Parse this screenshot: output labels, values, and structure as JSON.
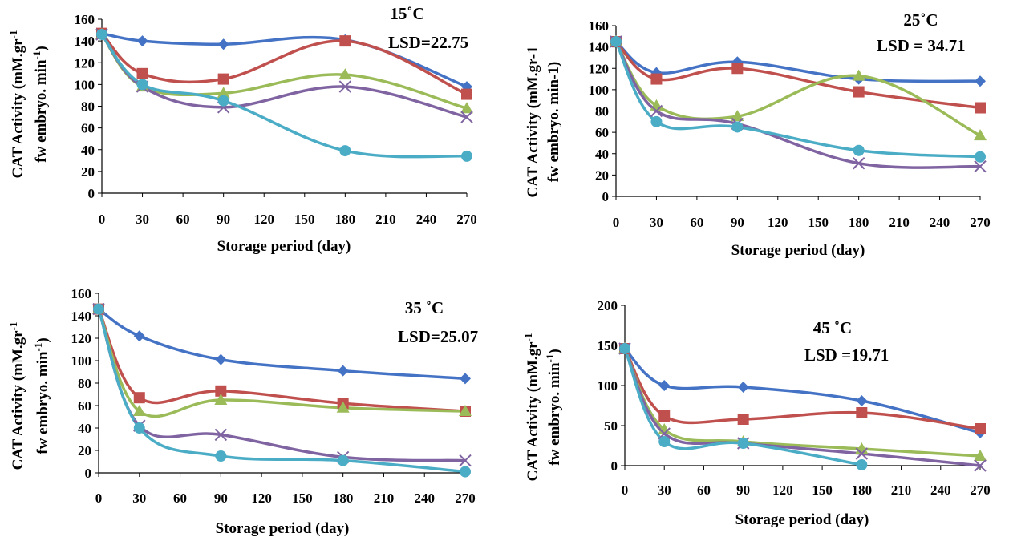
{
  "figure": {
    "colors": {
      "blue": "#4472c4",
      "red": "#c0504d",
      "green": "#9bbb59",
      "purple": "#8064a2",
      "cyan": "#4bacc6"
    }
  },
  "chart_data": [
    {
      "type": "line",
      "annotation_temp": "15˚C",
      "annotation_lsd": "LSD=22.75",
      "xlabel": "Storage period (day)",
      "ylabel_line1": "CAT Activity  (mM.gr",
      "ylabel_line1_sup": "-1",
      "ylabel_line2": "fw embryo. min",
      "ylabel_line2_sup": "-1",
      "ylabel_line2_end": ")",
      "xlim": [
        0,
        270
      ],
      "ylim": [
        0,
        160
      ],
      "x_ticks": [
        0,
        30,
        60,
        90,
        120,
        150,
        180,
        210,
        240,
        270
      ],
      "y_ticks": [
        0,
        20,
        40,
        60,
        80,
        100,
        120,
        140,
        160
      ],
      "series": [
        {
          "color": "#4472c4",
          "marker": "diamond",
          "x": [
            0,
            30,
            90,
            180,
            270
          ],
          "y": [
            147,
            140,
            137,
            141,
            98
          ]
        },
        {
          "color": "#c0504d",
          "marker": "square",
          "x": [
            0,
            30,
            90,
            180,
            270
          ],
          "y": [
            147,
            110,
            105,
            140,
            91
          ]
        },
        {
          "color": "#9bbb59",
          "marker": "triangle",
          "x": [
            0,
            30,
            90,
            180,
            270
          ],
          "y": [
            146,
            98,
            92,
            109,
            78
          ]
        },
        {
          "color": "#8064a2",
          "marker": "x",
          "x": [
            0,
            30,
            90,
            180,
            270
          ],
          "y": [
            146,
            98,
            79,
            98,
            70
          ]
        },
        {
          "color": "#4bacc6",
          "marker": "circle",
          "x": [
            0,
            30,
            90,
            180,
            270
          ],
          "y": [
            146,
            100,
            85,
            39,
            34
          ]
        }
      ]
    },
    {
      "type": "line",
      "annotation_temp": "25˚C",
      "annotation_lsd": "LSD  = 34.71",
      "xlabel": "Storage period (day)",
      "ylabel_line1": "CAT Activity  (mM.gr-1",
      "ylabel_line2": "fw embryo. min-1)",
      "xlim": [
        0,
        270
      ],
      "ylim": [
        0,
        160
      ],
      "x_ticks": [
        0,
        30,
        60,
        90,
        120,
        150,
        180,
        210,
        240,
        270
      ],
      "y_ticks": [
        0,
        20,
        40,
        60,
        80,
        100,
        120,
        140,
        160
      ],
      "series": [
        {
          "color": "#4472c4",
          "marker": "diamond",
          "x": [
            0,
            30,
            90,
            180,
            270
          ],
          "y": [
            145,
            116,
            126,
            110,
            108
          ]
        },
        {
          "color": "#c0504d",
          "marker": "square",
          "x": [
            0,
            30,
            90,
            180,
            270
          ],
          "y": [
            145,
            110,
            120,
            98,
            83
          ]
        },
        {
          "color": "#9bbb59",
          "marker": "triangle",
          "x": [
            0,
            30,
            90,
            180,
            270
          ],
          "y": [
            145,
            85,
            75,
            113,
            57
          ]
        },
        {
          "color": "#8064a2",
          "marker": "x",
          "x": [
            0,
            30,
            90,
            180,
            270
          ],
          "y": [
            145,
            80,
            68,
            31,
            28
          ]
        },
        {
          "color": "#4bacc6",
          "marker": "circle",
          "x": [
            0,
            30,
            90,
            180,
            270
          ],
          "y": [
            145,
            70,
            65,
            43,
            37
          ]
        }
      ]
    },
    {
      "type": "line",
      "annotation_temp": "35 ˚C",
      "annotation_lsd": "LSD=25.07",
      "xlabel": "Storage period (day)",
      "ylabel_line1": "CAT Activity  (mM.gr",
      "ylabel_line1_sup": "-1",
      "ylabel_line2": "fw embryo. min",
      "ylabel_line2_sup": "-1",
      "ylabel_line2_end": ")",
      "xlim": [
        0,
        270
      ],
      "ylim": [
        0,
        160
      ],
      "x_ticks": [
        0,
        30,
        60,
        90,
        120,
        150,
        180,
        210,
        240,
        270
      ],
      "y_ticks": [
        0,
        20,
        40,
        60,
        80,
        100,
        120,
        140,
        160
      ],
      "series": [
        {
          "color": "#4472c4",
          "marker": "diamond",
          "x": [
            0,
            30,
            90,
            180,
            270
          ],
          "y": [
            146,
            122,
            101,
            91,
            84
          ]
        },
        {
          "color": "#c0504d",
          "marker": "square",
          "x": [
            0,
            30,
            90,
            180,
            270
          ],
          "y": [
            146,
            67,
            73,
            62,
            55
          ]
        },
        {
          "color": "#9bbb59",
          "marker": "triangle",
          "x": [
            0,
            30,
            90,
            180,
            270
          ],
          "y": [
            146,
            55,
            65,
            58,
            55
          ]
        },
        {
          "color": "#8064a2",
          "marker": "x",
          "x": [
            0,
            30,
            90,
            180,
            270
          ],
          "y": [
            146,
            42,
            34,
            14,
            11
          ]
        },
        {
          "color": "#4bacc6",
          "marker": "circle",
          "x": [
            0,
            30,
            90,
            180,
            270
          ],
          "y": [
            146,
            40,
            15,
            11,
            1
          ]
        }
      ]
    },
    {
      "type": "line",
      "annotation_temp": "45 ˚C",
      "annotation_lsd": "LSD =19.71",
      "xlabel": "Storage period (day)",
      "ylabel_line1": "CAT Activity  (mM.gr",
      "ylabel_line1_sup": "-1",
      "ylabel_line2": "fw embryo. min",
      "ylabel_line2_sup": "-1",
      "ylabel_line2_end": ")",
      "xlim": [
        0,
        270
      ],
      "ylim": [
        0,
        200
      ],
      "x_ticks": [
        0,
        30,
        60,
        90,
        120,
        150,
        180,
        210,
        240,
        270
      ],
      "y_ticks": [
        0,
        50,
        100,
        150,
        200
      ],
      "series": [
        {
          "color": "#4472c4",
          "marker": "diamond",
          "x": [
            0,
            30,
            90,
            180,
            270
          ],
          "y": [
            146,
            100,
            98,
            81,
            41
          ]
        },
        {
          "color": "#c0504d",
          "marker": "square",
          "x": [
            0,
            30,
            90,
            180,
            270
          ],
          "y": [
            146,
            62,
            58,
            66,
            46
          ]
        },
        {
          "color": "#9bbb59",
          "marker": "triangle",
          "x": [
            0,
            30,
            90,
            180,
            270
          ],
          "y": [
            146,
            45,
            30,
            21,
            12
          ]
        },
        {
          "color": "#8064a2",
          "marker": "x",
          "x": [
            0,
            30,
            90,
            180,
            270
          ],
          "y": [
            146,
            40,
            28,
            15,
            0
          ]
        },
        {
          "color": "#4bacc6",
          "marker": "circle",
          "x": [
            0,
            30,
            90,
            180
          ],
          "y": [
            146,
            30,
            28,
            1
          ]
        }
      ]
    }
  ]
}
